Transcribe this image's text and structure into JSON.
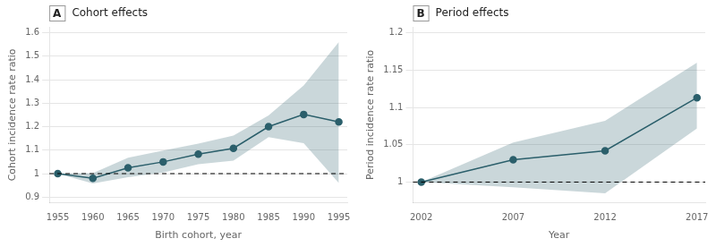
{
  "chart_data": [
    {
      "type": "line",
      "title": "Cohort effects",
      "annotations": [
        "A"
      ],
      "x_label": "Birth cohort, year",
      "y_label": "Cohort incidence rate ratio",
      "x": [
        1955,
        1960,
        1965,
        1970,
        1975,
        1980,
        1985,
        1990,
        1995
      ],
      "series": [
        {
          "values": [
            1.0,
            0.98,
            1.025,
            1.05,
            1.083,
            1.108,
            1.2,
            1.252,
            1.22
          ],
          "ci_low": [
            1.0,
            0.958,
            0.985,
            1.005,
            1.04,
            1.055,
            1.155,
            1.13,
            0.96
          ],
          "ci_high": [
            1.0,
            1.002,
            1.068,
            1.098,
            1.128,
            1.162,
            1.248,
            1.375,
            1.56
          ],
          "color": "#2b5f6b",
          "marker": "circle"
        }
      ],
      "reference_line": 1.0,
      "xlim": [
        1953.8,
        1996.2
      ],
      "xticks": [
        1955,
        1960,
        1965,
        1970,
        1975,
        1980,
        1985,
        1990,
        1995
      ],
      "ylim": [
        0.875,
        1.625
      ],
      "yticks": [
        0.9,
        1,
        1.1,
        1.2,
        1.3,
        1.4,
        1.5,
        1.6
      ],
      "grid": "y"
    },
    {
      "type": "line",
      "title": "Period effects",
      "annotations": [
        "B"
      ],
      "x_label": "Year",
      "y_label": "Period incidence rate ratio",
      "x": [
        2002,
        2007,
        2012,
        2017
      ],
      "series": [
        {
          "values": [
            1.0,
            1.03,
            1.042,
            1.113
          ],
          "ci_low": [
            1.0,
            0.993,
            0.985,
            1.072
          ],
          "ci_high": [
            1.0,
            1.053,
            1.082,
            1.16
          ],
          "color": "#2b5f6b",
          "marker": "circle"
        }
      ],
      "reference_line": 1.0,
      "xlim": [
        2001.55,
        2017.45
      ],
      "xticks": [
        2002,
        2007,
        2012,
        2017
      ],
      "ylim": [
        0.972,
        1.208
      ],
      "yticks": [
        1,
        1.05,
        1.1,
        1.15,
        1.2
      ],
      "grid": "y"
    }
  ]
}
